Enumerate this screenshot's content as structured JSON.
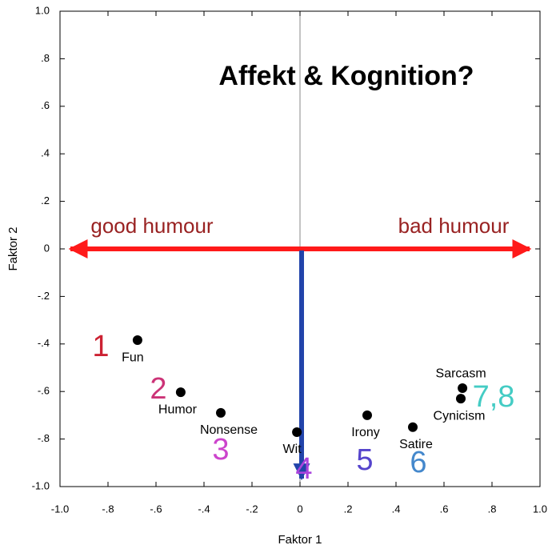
{
  "chart_data": {
    "type": "scatter",
    "title": "Affekt & Kognition?",
    "x_label": "Faktor 1",
    "y_label": "Faktor 2",
    "x": [
      -0.677,
      -0.497,
      -0.33,
      -0.013,
      0.28,
      0.47,
      0.677,
      0.67
    ],
    "values": [
      -0.384,
      -0.603,
      -0.69,
      -0.771,
      -0.7,
      -0.75,
      -0.586,
      -0.63
    ],
    "point_labels": [
      "Fun",
      "Humor",
      "Nonsense",
      "Wit",
      "Irony",
      "Satire",
      "Sarcasm",
      "Cynicism"
    ],
    "color": "#000000",
    "xlim": [
      -1.0,
      1.0
    ],
    "ylim": [
      -1.0,
      1.0
    ],
    "xticks": [
      {
        "value": -1.0,
        "label": "-1.0"
      },
      {
        "value": -0.8,
        "label": "-.8"
      },
      {
        "value": -0.6,
        "label": "-.6"
      },
      {
        "value": -0.4,
        "label": "-.4"
      },
      {
        "value": -0.2,
        "label": "-.2"
      },
      0,
      {
        "value": 0.2,
        "label": ".2"
      },
      {
        "value": 0.4,
        "label": ".4"
      },
      {
        "value": 0.6,
        "label": ".6"
      },
      {
        "value": 0.8,
        "label": ".8"
      },
      {
        "value": 1.0,
        "label": "1.0"
      }
    ],
    "yticks": [
      {
        "value": -1.0,
        "label": "-1.0"
      },
      {
        "value": -0.8,
        "label": "-.8"
      },
      {
        "value": -0.6,
        "label": "-.6"
      },
      {
        "value": -0.4,
        "label": "-.4"
      },
      {
        "value": -0.2,
        "label": "-.2"
      },
      0,
      {
        "value": 0.2,
        "label": ".2"
      },
      {
        "value": 0.4,
        "label": ".4"
      },
      {
        "value": 0.6,
        "label": ".6"
      },
      {
        "value": 0.8,
        "label": ".8"
      },
      {
        "value": 1.0,
        "label": "1.0"
      }
    ],
    "annotations": [
      {
        "text": "good humour",
        "color": "#992222"
      },
      {
        "text": "bad humour",
        "color": "#992222"
      },
      {
        "text": "1",
        "color": "#cc2233"
      },
      {
        "text": "2",
        "color": "#cc3377"
      },
      {
        "text": "3",
        "color": "#cc44cc"
      },
      {
        "text": "4",
        "color": "#aa44dd"
      },
      {
        "text": "5",
        "color": "#5544cc"
      },
      {
        "text": "6",
        "color": "#4488cc"
      },
      {
        "text": "7,8",
        "color": "#44ccc4"
      }
    ]
  }
}
